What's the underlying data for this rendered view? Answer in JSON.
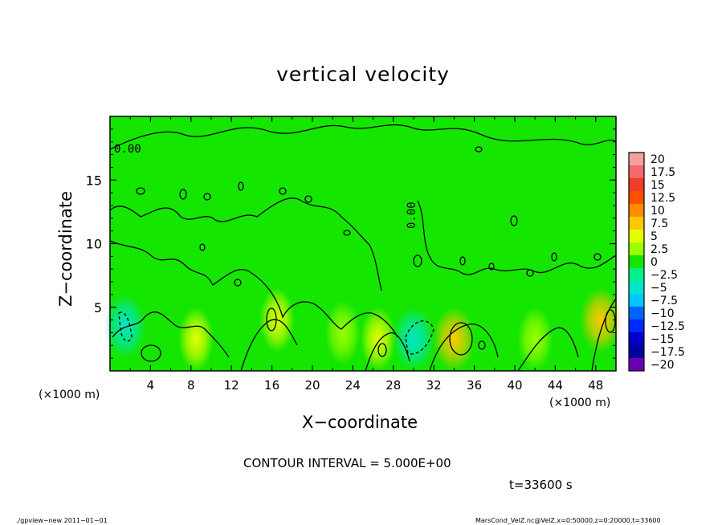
{
  "chart_data": {
    "type": "heatmap",
    "title": "vertical velocity",
    "xlabel": "X−coordinate",
    "ylabel": "Z−coordinate",
    "x_unit_label": "(×1000 m)",
    "xlim": [
      0,
      50
    ],
    "ylim": [
      0,
      20
    ],
    "x_ticks": [
      "4",
      "8",
      "12",
      "16",
      "20",
      "24",
      "28",
      "32",
      "36",
      "40",
      "44",
      "48"
    ],
    "y_ticks": [
      "5",
      "10",
      "15"
    ],
    "colorbar_labels": [
      "20",
      "17.5",
      "15",
      "12.5",
      "10",
      "7.5",
      "5",
      "2.5",
      "0",
      "−2.5",
      "−5",
      "−7.5",
      "−10",
      "−12.5",
      "−15",
      "−17.5",
      "−20"
    ],
    "colorbar_colors": [
      "#f4a0a0",
      "#f46a6a",
      "#f03c2a",
      "#ff5000",
      "#ff8c00",
      "#ffc800",
      "#e6ff00",
      "#9bff00",
      "#14e600",
      "#00f08c",
      "#00e6c8",
      "#00c8ff",
      "#0064ff",
      "#0028ff",
      "#0000c8",
      "#0000a0",
      "#6a00b4"
    ],
    "contour_labels": [
      "0.00",
      "0.00"
    ],
    "contour_interval_text": "CONTOUR INTERVAL = 5.000E+00",
    "time_text": "t=33600 s",
    "field_summary": "mostly near 0 (green); positive plumes (yellow, ~2.5–5) near x≈8, 16, 26, 34, 48 at z<5; negative downdrafts (cyan, ~−5) near x≈1–2 and x≈29–31 at z<4",
    "features": [
      {
        "x": 8.5,
        "z": 2.5,
        "w": 3.5
      },
      {
        "x": 16.5,
        "z": 4.0,
        "w": 2.5
      },
      {
        "x": 26.5,
        "z": 2.5,
        "w": 3.0
      },
      {
        "x": 34.0,
        "z": 2.5,
        "w": 5.0
      },
      {
        "x": 48.5,
        "z": 4.0,
        "w": 5.0
      },
      {
        "x": 1.5,
        "z": 3.5,
        "w": -5.0
      },
      {
        "x": 30.0,
        "z": 2.5,
        "w": -5.0
      },
      {
        "x": 23.0,
        "z": 3.0,
        "w": 1.5
      },
      {
        "x": 42.0,
        "z": 2.5,
        "w": 2.0
      }
    ]
  },
  "footer_left": "./gpview−new   2011−01−01",
  "footer_right": "MarsCond_VelZ.nc@VelZ,x=0:50000,z=0:20000,t=33600"
}
